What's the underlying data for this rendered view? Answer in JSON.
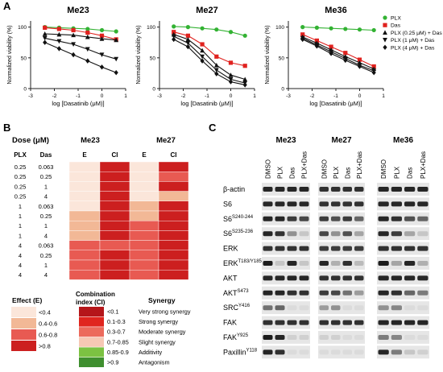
{
  "panel_labels": {
    "a": "A",
    "b": "B",
    "c": "C"
  },
  "legend_a": [
    {
      "label": "PLX",
      "color": "#33b233",
      "marker": "circle"
    },
    {
      "label": "Das",
      "color": "#e0221f",
      "marker": "square"
    },
    {
      "label": "PLX (0.25 μM) + Das",
      "color": "#111111",
      "marker": "triangle-up"
    },
    {
      "label": "PLX (1 μM) + Das",
      "color": "#111111",
      "marker": "triangle-down"
    },
    {
      "label": "PLX (4 μM) + Das",
      "color": "#111111",
      "marker": "diamond"
    }
  ],
  "chart_data": [
    {
      "type": "line",
      "title": "Me23",
      "xlabel": "log [Dasatinib (μM)]",
      "ylabel": "Normalized viability (%)",
      "xlim": [
        -3,
        1
      ],
      "ylim": [
        0,
        110
      ],
      "xticks": [
        "-3",
        "-2",
        "-1",
        "0",
        "1"
      ],
      "yticks": [
        "0",
        "50",
        "100"
      ],
      "x": [
        -2.4,
        -1.8,
        -1.2,
        -0.6,
        0.0,
        0.6
      ],
      "series": [
        {
          "name": "PLX",
          "color": "#33b233",
          "marker": "circle",
          "values": [
            100,
            99,
            98,
            97,
            95,
            93
          ]
        },
        {
          "name": "Das",
          "color": "#e0221f",
          "marker": "square",
          "values": [
            99,
            97,
            95,
            91,
            86,
            80
          ]
        },
        {
          "name": "PLX (0.25 μM) + Das",
          "color": "#111111",
          "marker": "triangle-up",
          "values": [
            89,
            88,
            87,
            84,
            81,
            79
          ]
        },
        {
          "name": "PLX (1 μM) + Das",
          "color": "#111111",
          "marker": "triangle-down",
          "values": [
            82,
            77,
            72,
            64,
            55,
            48
          ]
        },
        {
          "name": "PLX (4 μM) + Das",
          "color": "#111111",
          "marker": "diamond",
          "values": [
            75,
            65,
            55,
            45,
            35,
            26
          ]
        }
      ]
    },
    {
      "type": "line",
      "title": "Me27",
      "xlabel": "log [Dasatinib (μM)]",
      "ylabel": "Normalized viability (%)",
      "xlim": [
        -3,
        1
      ],
      "ylim": [
        0,
        110
      ],
      "xticks": [
        "-3",
        "-2",
        "-1",
        "0",
        "1"
      ],
      "yticks": [
        "0",
        "50",
        "100"
      ],
      "x": [
        -2.4,
        -1.8,
        -1.2,
        -0.6,
        0.0,
        0.6
      ],
      "series": [
        {
          "name": "PLX",
          "color": "#33b233",
          "marker": "circle",
          "values": [
            101,
            100,
            98,
            96,
            92,
            86
          ]
        },
        {
          "name": "Das",
          "color": "#e0221f",
          "marker": "square",
          "values": [
            92,
            86,
            72,
            52,
            42,
            37
          ]
        },
        {
          "name": "PLX (0.25 μM) + Das",
          "color": "#111111",
          "marker": "triangle-up",
          "values": [
            88,
            80,
            62,
            38,
            22,
            15
          ]
        },
        {
          "name": "PLX (1 μM) + Das",
          "color": "#111111",
          "marker": "triangle-down",
          "values": [
            85,
            74,
            52,
            30,
            15,
            9
          ]
        },
        {
          "name": "PLX (4 μM) + Das",
          "color": "#111111",
          "marker": "diamond",
          "values": [
            80,
            68,
            45,
            24,
            11,
            6
          ]
        }
      ]
    },
    {
      "type": "line",
      "title": "Me36",
      "xlabel": "log [Dasatinib (μM)]",
      "ylabel": "Normalized viability (%)",
      "xlim": [
        -3,
        1
      ],
      "ylim": [
        0,
        110
      ],
      "xticks": [
        "-3",
        "-2",
        "-1",
        "0",
        "1"
      ],
      "yticks": [
        "0",
        "50",
        "100"
      ],
      "x": [
        -2.4,
        -1.8,
        -1.2,
        -0.6,
        0.0,
        0.6
      ],
      "series": [
        {
          "name": "PLX",
          "color": "#33b233",
          "marker": "circle",
          "values": [
            100,
            99,
            98,
            97,
            96,
            95
          ]
        },
        {
          "name": "Das",
          "color": "#e0221f",
          "marker": "square",
          "values": [
            88,
            78,
            68,
            58,
            47,
            36
          ]
        },
        {
          "name": "PLX (0.25 μM) + Das",
          "color": "#111111",
          "marker": "triangle-up",
          "values": [
            84,
            74,
            63,
            52,
            42,
            32
          ]
        },
        {
          "name": "PLX (1 μM) + Das",
          "color": "#111111",
          "marker": "triangle-down",
          "values": [
            82,
            71,
            60,
            49,
            38,
            29
          ]
        },
        {
          "name": "PLX (4 μM) + Das",
          "color": "#111111",
          "marker": "diamond",
          "values": [
            80,
            69,
            57,
            46,
            36,
            26
          ]
        }
      ]
    },
    {
      "type": "heatmap",
      "headers": {
        "dose": "Dose (μM)",
        "plx": "PLX",
        "das": "Das",
        "group1": "Me23",
        "group2": "Me27",
        "e": "E",
        "ci": "CI"
      },
      "columns": [
        "Me23 E",
        "Me23 CI",
        "Me27 E",
        "Me27 CI"
      ],
      "rows": [
        {
          "plx": "0.25",
          "das": "0.063",
          "colors": [
            "#fbe6da",
            "#cc1f1f",
            "#fbe6da",
            "#cc1f1f"
          ]
        },
        {
          "plx": "0.25",
          "das": "0.25",
          "colors": [
            "#fbe6da",
            "#cc1f1f",
            "#fbe6da",
            "#e85a52"
          ]
        },
        {
          "plx": "0.25",
          "das": "1",
          "colors": [
            "#fbe6da",
            "#cc1f1f",
            "#fbe6da",
            "#cc1f1f"
          ]
        },
        {
          "plx": "0.25",
          "das": "4",
          "colors": [
            "#fbe6da",
            "#cc1f1f",
            "#fbe6da",
            "#f2b896"
          ]
        },
        {
          "plx": "1",
          "das": "0.063",
          "colors": [
            "#fbe6da",
            "#cc1f1f",
            "#f2b896",
            "#cc1f1f"
          ]
        },
        {
          "plx": "1",
          "das": "0.25",
          "colors": [
            "#f2b896",
            "#cc1f1f",
            "#f2b896",
            "#cc1f1f"
          ]
        },
        {
          "plx": "1",
          "das": "1",
          "colors": [
            "#f2b896",
            "#cc1f1f",
            "#e85a52",
            "#cc1f1f"
          ]
        },
        {
          "plx": "1",
          "das": "4",
          "colors": [
            "#f2b896",
            "#cc1f1f",
            "#e85a52",
            "#cc1f1f"
          ]
        },
        {
          "plx": "4",
          "das": "0.063",
          "colors": [
            "#e85a52",
            "#e85a52",
            "#e85a52",
            "#cc1f1f"
          ]
        },
        {
          "plx": "4",
          "das": "0.25",
          "colors": [
            "#e85a52",
            "#cc1f1f",
            "#e85a52",
            "#cc1f1f"
          ]
        },
        {
          "plx": "4",
          "das": "1",
          "colors": [
            "#e85a52",
            "#cc1f1f",
            "#e85a52",
            "#cc1f1f"
          ]
        },
        {
          "plx": "4",
          "das": "4",
          "colors": [
            "#e85a52",
            "#cc1f1f",
            "#e85a52",
            "#cc1f1f"
          ]
        }
      ]
    }
  ],
  "legend_b": {
    "effect_title": "Effect (E)",
    "ci_title": "Combination index (CI)",
    "synergy_title": "Synergy",
    "effect": [
      {
        "label": "<0.4",
        "color": "#fbe6da"
      },
      {
        "label": "0.4-0.6",
        "color": "#f2b896"
      },
      {
        "label": "0.6-0.8",
        "color": "#e85a52"
      },
      {
        "label": ">0.8",
        "color": "#cc1f1f"
      }
    ],
    "ci": [
      {
        "label": "<0.1",
        "synergy": "Very strong synergy",
        "color": "#b5161a"
      },
      {
        "label": "0.1-0.3",
        "synergy": "Strong synergy",
        "color": "#e0251e"
      },
      {
        "label": "0.3-0.7",
        "synergy": "Moderate synergy",
        "color": "#ec6a5c"
      },
      {
        "label": "0.7-0.85",
        "synergy": "Slight synergy",
        "color": "#f6c8b4"
      },
      {
        "label": "0.85-0.9",
        "synergy": "Additivity",
        "color": "#7cc242"
      },
      {
        "label": ">0.9",
        "synergy": "Antagonism",
        "color": "#3f8f2f"
      }
    ]
  },
  "blot": {
    "groups": [
      "Me23",
      "Me27",
      "Me36"
    ],
    "lanes": [
      "DMSO",
      "PLX",
      "Das",
      "PLX+Das"
    ],
    "rows": [
      {
        "label": "β-actin",
        "sup": "",
        "bands": [
          [
            0.9,
            0.9,
            0.9,
            0.9
          ],
          [
            0.85,
            0.85,
            0.85,
            0.85
          ],
          [
            0.9,
            0.9,
            0.9,
            0.9
          ]
        ]
      },
      {
        "label": "S6",
        "sup": "",
        "bands": [
          [
            0.9,
            0.9,
            0.9,
            0.9
          ],
          [
            0.85,
            0.85,
            0.85,
            0.85
          ],
          [
            0.9,
            0.9,
            0.9,
            0.9
          ]
        ]
      },
      {
        "label": "S6",
        "sup": "S240-244",
        "bands": [
          [
            0.9,
            0.9,
            0.8,
            0.75
          ],
          [
            0.8,
            0.7,
            0.8,
            0.6
          ],
          [
            0.9,
            0.85,
            0.7,
            0.6
          ]
        ]
      },
      {
        "label": "S6",
        "sup": "S235-236",
        "bands": [
          [
            0.9,
            0.85,
            0.4,
            0.15
          ],
          [
            0.75,
            0.4,
            0.7,
            0.3
          ],
          [
            0.9,
            0.8,
            0.3,
            0.15
          ]
        ]
      },
      {
        "label": "ERK",
        "sup": "",
        "bands": [
          [
            0.85,
            0.85,
            0.85,
            0.85
          ],
          [
            0.8,
            0.8,
            0.8,
            0.8
          ],
          [
            0.85,
            0.85,
            0.85,
            0.85
          ]
        ]
      },
      {
        "label": "ERK",
        "sup": "T183/Y185",
        "bands": [
          [
            0.95,
            0.15,
            0.9,
            0.15
          ],
          [
            0.9,
            0.25,
            0.85,
            0.2
          ],
          [
            0.95,
            0.3,
            0.9,
            0.25
          ]
        ]
      },
      {
        "label": "AKT",
        "sup": "",
        "bands": [
          [
            0.9,
            0.9,
            0.9,
            0.9
          ],
          [
            0.85,
            0.85,
            0.85,
            0.85
          ],
          [
            0.9,
            0.9,
            0.9,
            0.9
          ]
        ]
      },
      {
        "label": "AKT",
        "sup": "S473",
        "bands": [
          [
            0.9,
            0.9,
            0.85,
            0.85
          ],
          [
            0.8,
            0.75,
            0.55,
            0.35
          ],
          [
            0.9,
            0.85,
            0.6,
            0.5
          ]
        ]
      },
      {
        "label": "SRC",
        "sup": "Y416",
        "bands": [
          [
            0.55,
            0.6,
            0.05,
            0.05
          ],
          [
            0.35,
            0.4,
            0.05,
            0.05
          ],
          [
            0.4,
            0.45,
            0.05,
            0.05
          ]
        ]
      },
      {
        "label": "FAK",
        "sup": "",
        "bands": [
          [
            0.85,
            0.85,
            0.85,
            0.85
          ],
          [
            0.85,
            0.85,
            0.85,
            0.85
          ],
          [
            0.9,
            0.9,
            0.9,
            0.9
          ]
        ]
      },
      {
        "label": "FAK",
        "sup": "Y925",
        "bands": [
          [
            0.95,
            0.9,
            0.1,
            0.1
          ],
          [
            0.1,
            0.1,
            0.05,
            0.05
          ],
          [
            0.5,
            0.45,
            0.05,
            0.05
          ]
        ]
      },
      {
        "label": "Paxillin",
        "sup": "Y118",
        "bands": [
          [
            0.9,
            0.85,
            0.05,
            0.05
          ],
          [
            0.05,
            0.05,
            0.05,
            0.05
          ],
          [
            0.9,
            0.5,
            0.15,
            0.1
          ]
        ]
      }
    ]
  }
}
